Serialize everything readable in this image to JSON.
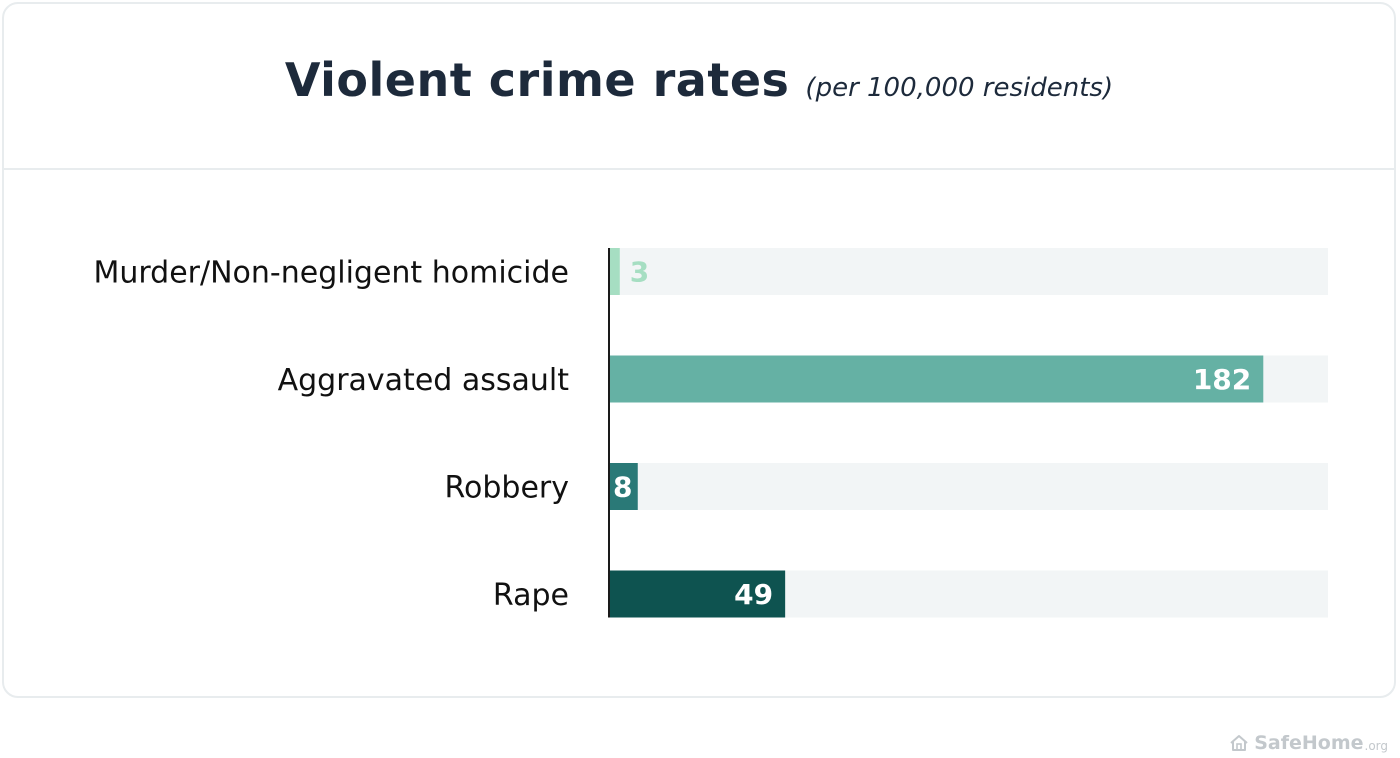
{
  "header": {
    "title": "Violent crime rates",
    "subtitle": "(per 100,000 residents)"
  },
  "chart_data": {
    "type": "bar",
    "orientation": "horizontal",
    "title": "Violent crime rates",
    "subtitle": "(per 100,000 residents)",
    "categories": [
      "Murder/Non-negligent homicide",
      "Aggravated assault",
      "Robbery",
      "Rape"
    ],
    "values": [
      3,
      182,
      8,
      49
    ],
    "value_labels": [
      "3",
      "182",
      "8",
      "49"
    ],
    "xlim": [
      0,
      200
    ],
    "colors": [
      "#a6dec2",
      "#65b1a4",
      "#2a7977",
      "#0e5350"
    ],
    "track_color": "#f2f5f6",
    "label_colors": [
      "#a6dec2",
      "#ffffff",
      "#ffffff",
      "#ffffff"
    ],
    "grid": false,
    "legend": "none"
  },
  "brand": {
    "icon": "house-icon",
    "name": "SafeHome",
    "suffix": ".org"
  }
}
